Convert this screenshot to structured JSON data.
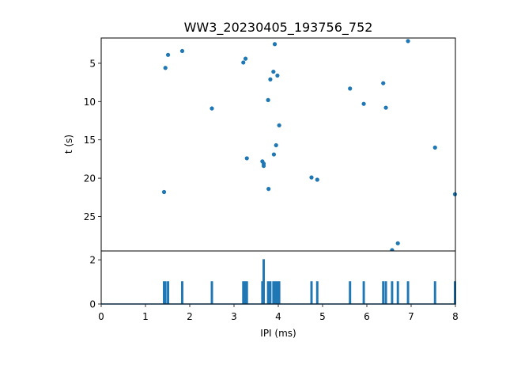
{
  "chart_data": [
    {
      "type": "scatter",
      "title": "WW3_20230405_193756_752",
      "xlabel": "",
      "ylabel": "t (s)",
      "xlim": [
        0,
        8
      ],
      "ylim": [
        29.5,
        1.7
      ],
      "y_inverted": true,
      "yticks": [
        5,
        10,
        15,
        20,
        25
      ],
      "color": "#1f77b4",
      "points": [
        {
          "x": 6.93,
          "y": 2.1
        },
        {
          "x": 3.92,
          "y": 2.5
        },
        {
          "x": 1.83,
          "y": 3.4
        },
        {
          "x": 1.51,
          "y": 3.9
        },
        {
          "x": 3.26,
          "y": 4.4
        },
        {
          "x": 3.21,
          "y": 4.9
        },
        {
          "x": 1.45,
          "y": 5.6
        },
        {
          "x": 3.89,
          "y": 6.1
        },
        {
          "x": 3.98,
          "y": 6.6
        },
        {
          "x": 3.82,
          "y": 7.1
        },
        {
          "x": 6.37,
          "y": 7.6
        },
        {
          "x": 5.62,
          "y": 8.3
        },
        {
          "x": 3.77,
          "y": 9.8
        },
        {
          "x": 5.93,
          "y": 10.3
        },
        {
          "x": 2.5,
          "y": 10.9
        },
        {
          "x": 6.43,
          "y": 10.8
        },
        {
          "x": 4.02,
          "y": 13.1
        },
        {
          "x": 7.54,
          "y": 16.0
        },
        {
          "x": 3.95,
          "y": 15.7
        },
        {
          "x": 3.9,
          "y": 16.9
        },
        {
          "x": 3.29,
          "y": 17.4
        },
        {
          "x": 3.64,
          "y": 17.8
        },
        {
          "x": 3.67,
          "y": 18.1
        },
        {
          "x": 3.67,
          "y": 18.4
        },
        {
          "x": 4.75,
          "y": 19.9
        },
        {
          "x": 4.88,
          "y": 20.2
        },
        {
          "x": 3.78,
          "y": 21.4
        },
        {
          "x": 1.42,
          "y": 21.8
        },
        {
          "x": 7.99,
          "y": 22.1
        },
        {
          "x": 6.7,
          "y": 28.5
        },
        {
          "x": 6.57,
          "y": 29.4
        }
      ]
    },
    {
      "type": "line",
      "title": "",
      "xlabel": "IPI (ms)",
      "ylabel": "",
      "xlim": [
        0,
        8
      ],
      "ylim": [
        0,
        2.4
      ],
      "xticks": [
        0,
        1,
        2,
        3,
        4,
        5,
        6,
        7,
        8
      ],
      "yticks": [
        0,
        2
      ],
      "color": "#1f77b4",
      "spikes": [
        {
          "x": 1.42,
          "y": 1
        },
        {
          "x": 1.45,
          "y": 1
        },
        {
          "x": 1.51,
          "y": 1
        },
        {
          "x": 1.83,
          "y": 1
        },
        {
          "x": 2.5,
          "y": 1
        },
        {
          "x": 3.21,
          "y": 1
        },
        {
          "x": 3.26,
          "y": 1
        },
        {
          "x": 3.29,
          "y": 1
        },
        {
          "x": 3.64,
          "y": 1
        },
        {
          "x": 3.67,
          "y": 2
        },
        {
          "x": 3.77,
          "y": 1
        },
        {
          "x": 3.78,
          "y": 1
        },
        {
          "x": 3.82,
          "y": 1
        },
        {
          "x": 3.89,
          "y": 1
        },
        {
          "x": 3.9,
          "y": 1
        },
        {
          "x": 3.92,
          "y": 1
        },
        {
          "x": 3.95,
          "y": 1
        },
        {
          "x": 3.98,
          "y": 1
        },
        {
          "x": 4.02,
          "y": 1
        },
        {
          "x": 4.75,
          "y": 1
        },
        {
          "x": 4.88,
          "y": 1
        },
        {
          "x": 5.62,
          "y": 1
        },
        {
          "x": 5.93,
          "y": 1
        },
        {
          "x": 6.37,
          "y": 1
        },
        {
          "x": 6.43,
          "y": 1
        },
        {
          "x": 6.57,
          "y": 1
        },
        {
          "x": 6.7,
          "y": 1
        },
        {
          "x": 6.93,
          "y": 1
        },
        {
          "x": 7.54,
          "y": 1
        },
        {
          "x": 7.99,
          "y": 1
        }
      ]
    }
  ]
}
